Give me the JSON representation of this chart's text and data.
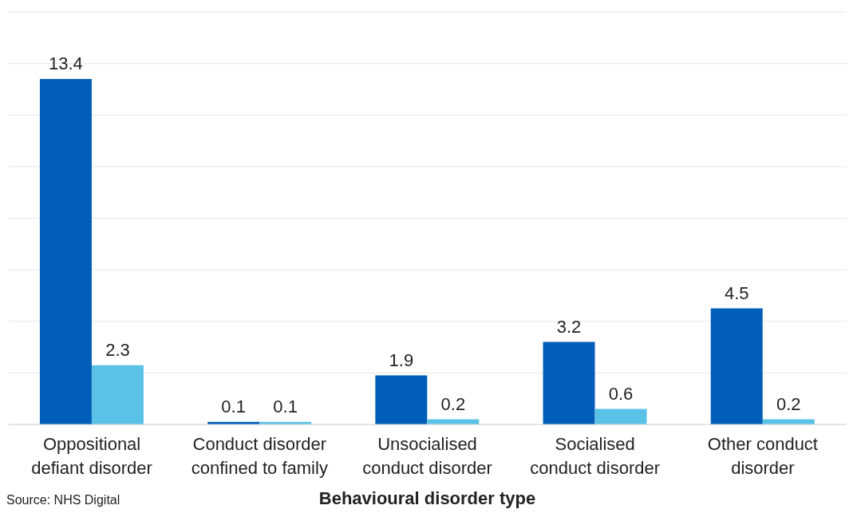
{
  "chart_data": {
    "type": "bar",
    "xlabel": "Behavioural disorder type",
    "categories": [
      "Oppositional defiant disorder",
      "Conduct disorder confined to family",
      "Unsocialised conduct disorder",
      "Socialised conduct disorder",
      "Other conduct disorder"
    ],
    "series": [
      {
        "color": "#005eb8",
        "values": [
          13.4,
          0.1,
          1.9,
          3.2,
          4.5
        ]
      },
      {
        "color": "#5bc2e7",
        "values": [
          2.3,
          0.1,
          0.2,
          0.6,
          0.2
        ]
      }
    ],
    "ylim": [
      0,
      16
    ],
    "yticks": [
      {
        "value": 0,
        "label": null
      },
      {
        "value": 2,
        "label": null
      },
      {
        "value": 4,
        "label": null
      },
      {
        "value": 6,
        "label": null
      },
      {
        "value": 8,
        "label": null
      },
      {
        "value": 10,
        "label": null
      },
      {
        "value": 12,
        "label": null
      },
      {
        "value": 14,
        "label": null
      },
      {
        "value": 16,
        "label": null
      }
    ],
    "tick_labels": "x",
    "grid": "y",
    "data_labels": true,
    "annotations": [
      "Source: NHS Digital"
    ]
  }
}
